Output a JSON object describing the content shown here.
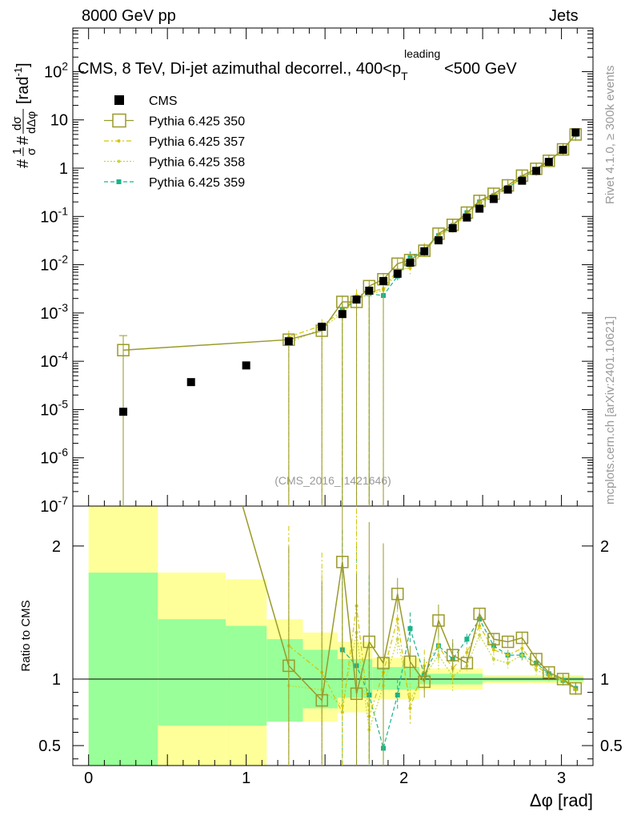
{
  "header": {
    "left": "8000 GeV pp",
    "right": "Jets"
  },
  "side_text": {
    "rivet": "Rivet 4.1.0, ≥ 300k events",
    "mcplots": "mcplots.cern.ch [arXiv:2401.10621]"
  },
  "colors": {
    "cms": "#000000",
    "py350": "#9a9a2a",
    "py357": "#d4c400",
    "py358": "#c8d63a",
    "py359": "#1ab38a",
    "band_yellow": "#ffff99",
    "band_green": "#99ff99"
  },
  "chart_data": {
    "type": "scatter",
    "title": "CMS, 8 TeV, Di-jet azimuthal decorrel., 400<p_T^leading<500 GeV",
    "title_parts": {
      "main": "CMS, 8 TeV, Di-jet azimuthal decorrel., 400<p",
      "sub": "T",
      "sup": "leading",
      "tail": "<500 GeV"
    },
    "analysis_id": "(CMS_2016_I1421646)",
    "xlabel": "Δφ [rad]",
    "ylabel": "1/σ dσ/dΔφ [rad⁻¹]",
    "ylabel_parts": {
      "prefix": "#",
      "one": "1",
      "sigma": "σ",
      "hash2": "#",
      "dsig": "dσ",
      "ddphi": "dΔφ",
      "unit": "[rad",
      "unit_sup": "-1",
      "unit_end": "]"
    },
    "ratio_ylabel": "Ratio to CMS",
    "xlim": [
      -0.1,
      3.2
    ],
    "ylim": [
      1e-07,
      800
    ],
    "ratio_ylim": [
      0.35,
      2.3
    ],
    "x_ticks": [
      "0",
      "1",
      "2",
      "3"
    ],
    "y_ticks": [
      {
        "base": "10",
        "exp": "-7",
        "v": 1e-07
      },
      {
        "base": "10",
        "exp": "-6",
        "v": 1e-06
      },
      {
        "base": "10",
        "exp": "-5",
        "v": 1e-05
      },
      {
        "base": "10",
        "exp": "-4",
        "v": 0.0001
      },
      {
        "base": "10",
        "exp": "-3",
        "v": 0.001
      },
      {
        "base": "10",
        "exp": "-2",
        "v": 0.01
      },
      {
        "base": "10",
        "exp": "-1",
        "v": 0.1
      },
      {
        "base": "1",
        "exp": "",
        "v": 1
      },
      {
        "base": "10",
        "exp": "",
        "v": 10
      },
      {
        "base": "10",
        "exp": "2",
        "v": 100
      }
    ],
    "ratio_ticks": [
      "0.5",
      "1",
      "2"
    ],
    "legend": {
      "cms": "CMS",
      "py350": "Pythia 6.425 350",
      "py357": "Pythia 6.425 357",
      "py358": "Pythia 6.425 358",
      "py359": "Pythia 6.425 359"
    },
    "series": [
      {
        "name": "CMS",
        "x": [
          0.22,
          0.65,
          1.0,
          1.27,
          1.48,
          1.61,
          1.7,
          1.78,
          1.87,
          1.96,
          2.04,
          2.13,
          2.22,
          2.31,
          2.4,
          2.48,
          2.57,
          2.66,
          2.75,
          2.84,
          2.92,
          3.01,
          3.09
        ],
        "values": [
          9e-06,
          3.7e-05,
          8.2e-05,
          0.00026,
          0.00052,
          0.00095,
          0.0019,
          0.0029,
          0.0046,
          0.0065,
          0.011,
          0.019,
          0.032,
          0.057,
          0.095,
          0.145,
          0.23,
          0.36,
          0.55,
          0.88,
          1.35,
          2.4,
          5.5
        ]
      },
      {
        "name": "Pythia 6.425 350",
        "x": [
          0.22,
          1.27,
          1.48,
          1.61,
          1.7,
          1.78,
          1.87,
          1.96,
          2.04,
          2.13,
          2.22,
          2.31,
          2.4,
          2.48,
          2.57,
          2.66,
          2.75,
          2.84,
          2.92,
          3.01,
          3.09
        ],
        "values": [
          0.00017,
          0.00028,
          0.00043,
          0.0017,
          0.0017,
          0.0036,
          0.005,
          0.0105,
          0.0125,
          0.0195,
          0.044,
          0.067,
          0.12,
          0.21,
          0.295,
          0.44,
          0.7,
          0.97,
          1.42,
          2.45,
          5.0
        ],
        "ratio": [
          null,
          1.1,
          0.84,
          1.88,
          0.89,
          1.28,
          1.12,
          1.64,
          1.13,
          0.98,
          1.44,
          1.18,
          1.12,
          1.49,
          1.3,
          1.28,
          1.31,
          1.15,
          1.05,
          1.0,
          0.93
        ]
      },
      {
        "name": "Pythia 6.425 357",
        "x": [
          1.27,
          1.48,
          1.61,
          1.7,
          1.78,
          1.87,
          1.96,
          2.04,
          2.13,
          2.22,
          2.31,
          2.4,
          2.48,
          2.57,
          2.66,
          2.75,
          2.84,
          2.92,
          3.01,
          3.09
        ],
        "values": [
          0.00032,
          0.00055,
          0.0011,
          0.0023,
          0.0027,
          0.0032,
          0.0078,
          0.0085,
          0.021,
          0.04,
          0.063,
          0.11,
          0.2,
          0.27,
          0.4,
          0.64,
          0.92,
          1.4,
          2.42,
          4.9
        ],
        "ratio": [
          1.25,
          1.05,
          0.75,
          1.55,
          0.72,
          1.05,
          1.45,
          0.78,
          1.1,
          1.25,
          1.08,
          1.2,
          1.4,
          1.22,
          1.18,
          1.23,
          1.1,
          1.03,
          0.99,
          0.92
        ]
      },
      {
        "name": "Pythia 6.425 358",
        "x": [
          1.27,
          1.48,
          1.61,
          1.7,
          1.78,
          1.87,
          1.96,
          2.04,
          2.13,
          2.22,
          2.31,
          2.4,
          2.48,
          2.57,
          2.66,
          2.75,
          2.84,
          2.92,
          3.01,
          3.09
        ],
        "values": [
          0.00024,
          0.00048,
          0.001,
          0.002,
          0.0024,
          0.003,
          0.0068,
          0.0095,
          0.019,
          0.038,
          0.058,
          0.105,
          0.19,
          0.25,
          0.38,
          0.6,
          0.9,
          1.38,
          2.4,
          4.95
        ],
        "ratio": [
          0.95,
          0.92,
          0.8,
          1.35,
          0.62,
          0.95,
          1.3,
          0.85,
          1.02,
          1.18,
          1.02,
          1.1,
          1.33,
          1.15,
          1.12,
          1.18,
          1.07,
          1.02,
          0.99,
          0.92
        ]
      },
      {
        "name": "Pythia 6.425 359",
        "x": [
          1.61,
          1.7,
          1.78,
          1.87,
          1.96,
          2.04,
          2.13,
          2.22,
          2.31,
          2.4,
          2.48,
          2.57,
          2.66,
          2.75,
          2.84,
          2.92,
          3.01,
          3.09
        ],
        "values": [
          0.00115,
          0.0019,
          0.0025,
          0.0023,
          0.0058,
          0.014,
          0.02,
          0.04,
          0.065,
          0.12,
          0.2,
          0.27,
          0.4,
          0.63,
          0.94,
          1.4,
          2.4,
          5.0
        ],
        "ratio": [
          1.22,
          1.1,
          0.88,
          0.48,
          0.88,
          1.38,
          1.03,
          1.25,
          1.15,
          1.3,
          1.45,
          1.25,
          1.18,
          1.18,
          1.12,
          1.04,
          0.99,
          0.93
        ]
      }
    ],
    "bands": [
      {
        "x0": 0.0,
        "x1": 0.44,
        "green": [
          0.35,
          1.8
        ],
        "yellow": [
          0.35,
          2.3
        ]
      },
      {
        "x0": 0.44,
        "x1": 0.87,
        "green": [
          0.65,
          1.45
        ],
        "yellow": [
          0.35,
          1.8
        ]
      },
      {
        "x0": 0.87,
        "x1": 1.13,
        "green": [
          0.65,
          1.4
        ],
        "yellow": [
          0.35,
          1.75
        ]
      },
      {
        "x0": 1.13,
        "x1": 1.36,
        "green": [
          0.68,
          1.3
        ],
        "yellow": [
          0.68,
          1.45
        ]
      },
      {
        "x0": 1.36,
        "x1": 1.58,
        "green": [
          0.78,
          1.22
        ],
        "yellow": [
          0.68,
          1.35
        ]
      },
      {
        "x0": 1.58,
        "x1": 1.8,
        "green": [
          0.86,
          1.15
        ],
        "yellow": [
          0.75,
          1.28
        ]
      },
      {
        "x0": 1.8,
        "x1": 2.1,
        "green": [
          0.92,
          1.09
        ],
        "yellow": [
          0.85,
          1.16
        ]
      },
      {
        "x0": 2.1,
        "x1": 2.5,
        "green": [
          0.96,
          1.04
        ],
        "yellow": [
          0.92,
          1.08
        ]
      },
      {
        "x0": 2.5,
        "x1": 3.14,
        "green": [
          0.985,
          1.015
        ],
        "yellow": [
          0.97,
          1.03
        ]
      }
    ]
  }
}
